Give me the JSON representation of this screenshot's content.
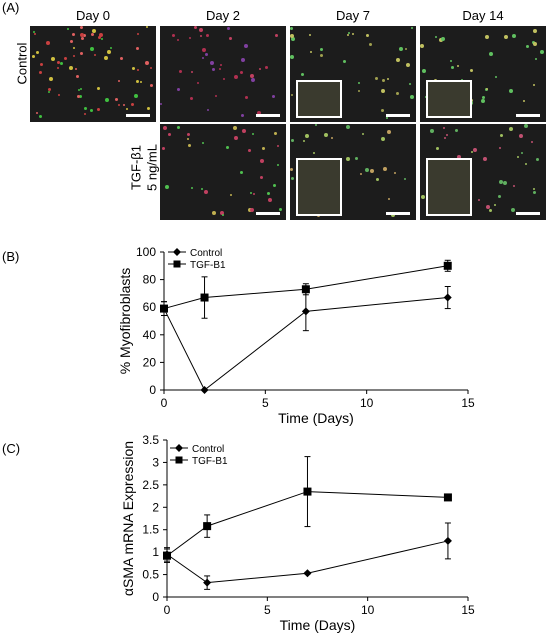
{
  "panel_a": {
    "label": "(A)",
    "columns": [
      "Day 0",
      "Day 2",
      "Day 7",
      "Day 14"
    ],
    "rows": [
      {
        "label": "Control",
        "sublabel": ""
      },
      {
        "label": "TGF-β1",
        "sublabel": "5 ng/mL"
      }
    ]
  },
  "chart_data": [
    {
      "type": "line",
      "panel": "(B)",
      "xlabel": "Time (Days)",
      "ylabel": "% Myofibroblasts",
      "xlim": [
        0,
        15
      ],
      "ylim": [
        0,
        100
      ],
      "xticks": [
        0,
        5,
        10,
        15
      ],
      "yticks": [
        0,
        20,
        40,
        60,
        80,
        100
      ],
      "grid": false,
      "legend": "top-left",
      "series": [
        {
          "name": "Control",
          "marker": "diamond",
          "x": [
            0,
            2,
            7,
            14
          ],
          "y": [
            59,
            0,
            57,
            67
          ],
          "err": [
            5,
            0,
            14,
            8
          ]
        },
        {
          "name": "TGF-B1",
          "marker": "square",
          "x": [
            0,
            2,
            7,
            14
          ],
          "y": [
            59,
            67,
            73,
            90
          ],
          "err": [
            5,
            15,
            4,
            4
          ]
        }
      ]
    },
    {
      "type": "line",
      "panel": "(C)",
      "xlabel": "Time (Days)",
      "ylabel": "αSMA mRNA Expression",
      "xlim": [
        0,
        15
      ],
      "ylim": [
        0,
        3.5
      ],
      "xticks": [
        0,
        5,
        10,
        15
      ],
      "yticks": [
        0,
        0.5,
        1,
        1.5,
        2,
        2.5,
        3,
        3.5
      ],
      "grid": false,
      "legend": "top-left",
      "series": [
        {
          "name": "Control",
          "marker": "diamond",
          "x": [
            0,
            2,
            7,
            14
          ],
          "y": [
            0.95,
            0.32,
            0.53,
            1.25
          ],
          "err": [
            0.15,
            0.15,
            0.02,
            0.4
          ]
        },
        {
          "name": "TGF-B1",
          "marker": "square",
          "x": [
            0,
            2,
            7,
            14
          ],
          "y": [
            0.92,
            1.58,
            2.35,
            2.22
          ],
          "err": [
            0.15,
            0.25,
            0.78,
            0.03
          ]
        }
      ]
    }
  ]
}
